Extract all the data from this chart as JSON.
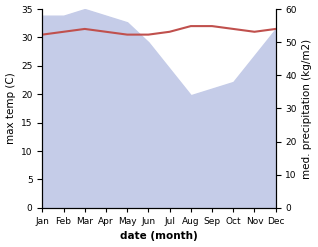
{
  "months": [
    "Jan",
    "Feb",
    "Mar",
    "Apr",
    "May",
    "Jun",
    "Jul",
    "Aug",
    "Sep",
    "Oct",
    "Nov",
    "Dec"
  ],
  "month_indices": [
    0,
    1,
    2,
    3,
    4,
    5,
    6,
    7,
    8,
    9,
    10,
    11
  ],
  "temp_max": [
    30.5,
    31.0,
    31.5,
    31.0,
    30.5,
    30.5,
    31.0,
    32.0,
    32.0,
    31.5,
    31.0,
    31.5
  ],
  "precipitation": [
    58,
    58,
    60,
    58,
    56,
    50,
    42,
    34,
    36,
    38,
    46,
    54
  ],
  "temp_color": "#c0504d",
  "precip_fill_color": "#c5cce8",
  "precip_fill_alpha": 1.0,
  "temp_ylim": [
    0,
    35
  ],
  "precip_ylim": [
    0,
    60
  ],
  "temp_yticks": [
    0,
    5,
    10,
    15,
    20,
    25,
    30,
    35
  ],
  "precip_yticks": [
    0,
    10,
    20,
    30,
    40,
    50,
    60
  ],
  "xlabel": "date (month)",
  "ylabel_left": "max temp (C)",
  "ylabel_right": "med. precipitation (kg/m2)",
  "background_color": "#ffffff",
  "label_fontsize": 7.5,
  "tick_fontsize": 6.5,
  "temp_linewidth": 1.5
}
